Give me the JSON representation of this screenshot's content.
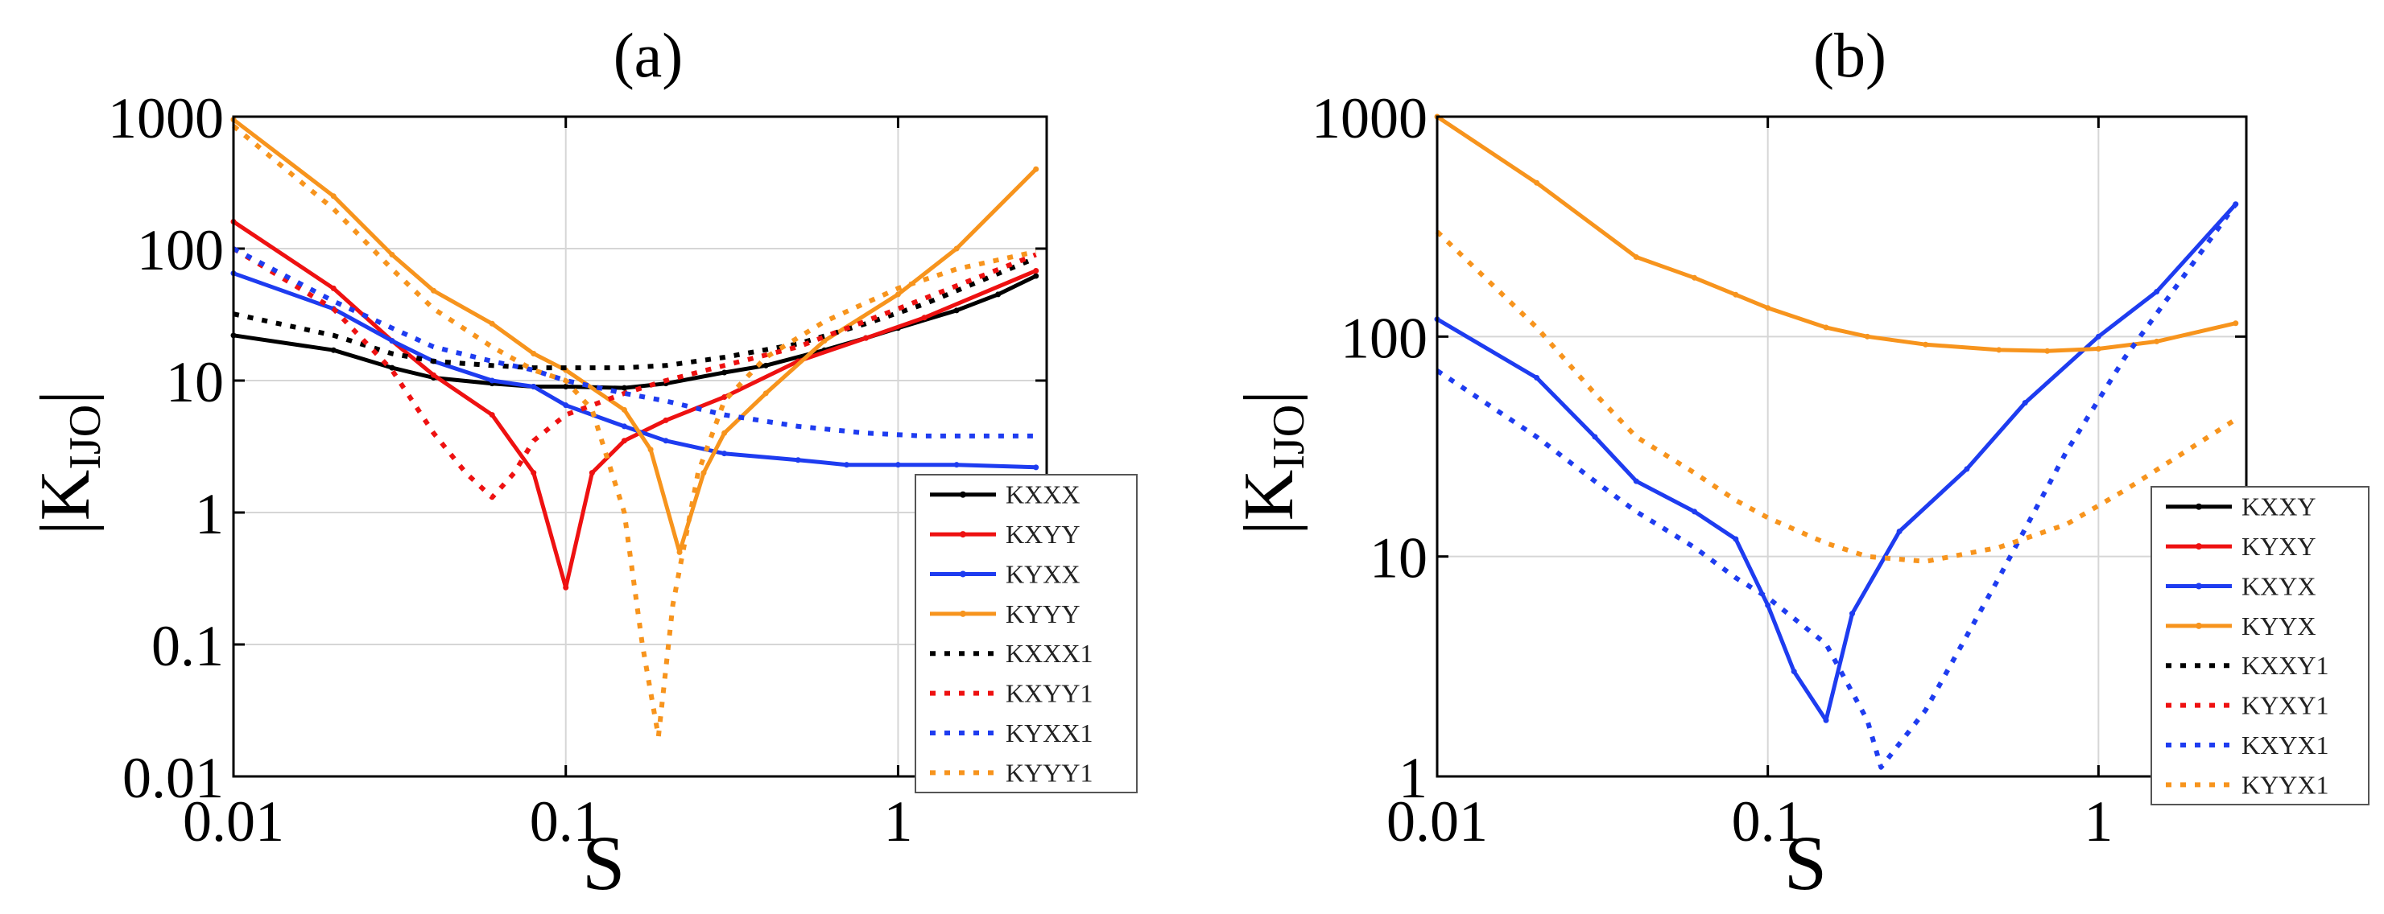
{
  "chart_data": [
    {
      "type": "line",
      "title": "(a)",
      "xlabel": "S",
      "ylabel": "|K",
      "ylabel_sub": "IJO",
      "ylabel_end": "|",
      "xscale": "log",
      "yscale": "log",
      "xlim": [
        0.01,
        2.8
      ],
      "ylim": [
        0.01,
        1000
      ],
      "xticks": [
        0.01,
        0.1,
        1
      ],
      "xtick_labels": [
        "0.01",
        "0.1",
        "1"
      ],
      "yticks": [
        0.01,
        0.1,
        1,
        10,
        100,
        1000
      ],
      "ytick_labels": [
        "0.01",
        "0.1",
        "1",
        "10",
        "100",
        "1000"
      ],
      "grid": true,
      "legend_position": "bottom-right",
      "series": [
        {
          "name": "KXXX",
          "color": "#000000",
          "style": "solid",
          "x": [
            0.01,
            0.02,
            0.03,
            0.04,
            0.06,
            0.08,
            0.1,
            0.15,
            0.2,
            0.3,
            0.4,
            0.6,
            0.8,
            1,
            1.5,
            2,
            2.6
          ],
          "y": [
            22,
            17,
            12.5,
            10.5,
            9.5,
            9,
            9,
            8.8,
            9.5,
            11.5,
            13,
            17,
            21,
            25,
            34,
            45,
            62
          ]
        },
        {
          "name": "KXYY",
          "color": "#ee1111",
          "style": "solid",
          "x": [
            0.01,
            0.02,
            0.03,
            0.04,
            0.06,
            0.08,
            0.1,
            0.12,
            0.15,
            0.2,
            0.3,
            0.5,
            0.8,
            1.2,
            2.6
          ],
          "y": [
            160,
            50,
            20,
            11,
            5.5,
            2,
            0.27,
            2,
            3.5,
            5,
            7.5,
            14,
            21,
            30,
            68
          ]
        },
        {
          "name": "KYXX",
          "color": "#1e3cf0",
          "style": "solid",
          "x": [
            0.01,
            0.02,
            0.03,
            0.04,
            0.06,
            0.08,
            0.1,
            0.15,
            0.2,
            0.3,
            0.5,
            0.7,
            1,
            1.5,
            2.6
          ],
          "y": [
            65,
            35,
            20,
            14,
            10,
            9,
            6.5,
            4.5,
            3.5,
            2.8,
            2.5,
            2.3,
            2.3,
            2.3,
            2.2
          ]
        },
        {
          "name": "KYYY",
          "color": "#f7941d",
          "style": "solid",
          "x": [
            0.01,
            0.02,
            0.03,
            0.04,
            0.06,
            0.08,
            0.1,
            0.15,
            0.18,
            0.22,
            0.26,
            0.3,
            0.4,
            0.6,
            1,
            1.5,
            2.6
          ],
          "y": [
            950,
            250,
            90,
            48,
            27,
            16,
            12,
            6,
            3,
            0.5,
            2,
            4,
            8,
            20,
            45,
            100,
            400
          ]
        },
        {
          "name": "KXXX1",
          "color": "#000000",
          "style": "dotted",
          "x": [
            0.01,
            0.02,
            0.03,
            0.04,
            0.06,
            0.08,
            0.1,
            0.15,
            0.2,
            0.3,
            0.5,
            0.8,
            1.2,
            2.6
          ],
          "y": [
            32,
            22,
            16,
            14,
            13,
            12.5,
            12.5,
            12.5,
            13,
            15,
            19,
            27,
            38,
            85
          ]
        },
        {
          "name": "KXYY1",
          "color": "#ee1111",
          "style": "dotted",
          "x": [
            0.01,
            0.02,
            0.03,
            0.04,
            0.05,
            0.06,
            0.07,
            0.08,
            0.1,
            0.12,
            0.15,
            0.2,
            0.3,
            0.5,
            1,
            2.6
          ],
          "y": [
            100,
            35,
            12,
            4,
            2,
            1.3,
            2,
            3.5,
            5.5,
            6.5,
            8,
            10,
            13,
            18,
            35,
            90
          ]
        },
        {
          "name": "KYXX1",
          "color": "#1e3cf0",
          "style": "dotted",
          "x": [
            0.01,
            0.02,
            0.03,
            0.04,
            0.06,
            0.08,
            0.1,
            0.15,
            0.2,
            0.3,
            0.5,
            0.8,
            1.2,
            2.6
          ],
          "y": [
            100,
            40,
            25,
            18,
            14,
            12,
            10,
            8,
            7,
            5.5,
            4.5,
            4,
            3.8,
            3.8
          ]
        },
        {
          "name": "KYYY1",
          "color": "#f7941d",
          "style": "dotted",
          "x": [
            0.01,
            0.02,
            0.03,
            0.04,
            0.06,
            0.08,
            0.1,
            0.12,
            0.15,
            0.17,
            0.19,
            0.21,
            0.25,
            0.3,
            0.4,
            0.6,
            1,
            1.5,
            2.6
          ],
          "y": [
            850,
            200,
            70,
            35,
            18,
            12,
            10,
            6,
            1,
            0.1,
            0.02,
            0.2,
            2,
            7,
            15,
            28,
            50,
            70,
            95
          ]
        }
      ]
    },
    {
      "type": "line",
      "title": "(b)",
      "xlabel": "S",
      "ylabel": "|K",
      "ylabel_sub": "IJO",
      "ylabel_end": "|",
      "xscale": "log",
      "yscale": "log",
      "xlim": [
        0.01,
        2.8
      ],
      "ylim": [
        1,
        1000
      ],
      "xticks": [
        0.01,
        0.1,
        1
      ],
      "xtick_labels": [
        "0.01",
        "0.1",
        "1"
      ],
      "yticks": [
        1,
        10,
        100,
        1000
      ],
      "ytick_labels": [
        "1",
        "10",
        "100",
        "1000"
      ],
      "grid": true,
      "legend_position": "bottom-right",
      "series": [
        {
          "name": "KXXY",
          "color": "#000000",
          "style": "solid",
          "x": [],
          "y": []
        },
        {
          "name": "KYXY",
          "color": "#ee1111",
          "style": "solid",
          "x": [],
          "y": []
        },
        {
          "name": "KXYX",
          "color": "#1e3cf0",
          "style": "solid",
          "x": [
            0.01,
            0.02,
            0.03,
            0.04,
            0.06,
            0.08,
            0.1,
            0.12,
            0.15,
            0.18,
            0.25,
            0.4,
            0.6,
            1,
            1.5,
            2.6
          ],
          "y": [
            120,
            65,
            35,
            22,
            16,
            12,
            6,
            3,
            1.8,
            5.5,
            13,
            25,
            50,
            100,
            160,
            400
          ]
        },
        {
          "name": "KYYX",
          "color": "#f7941d",
          "style": "solid",
          "x": [
            0.01,
            0.02,
            0.04,
            0.06,
            0.08,
            0.1,
            0.15,
            0.2,
            0.3,
            0.5,
            0.7,
            1,
            1.5,
            2.6
          ],
          "y": [
            1000,
            500,
            230,
            185,
            155,
            135,
            110,
            100,
            92,
            87,
            86,
            88,
            95,
            115
          ]
        },
        {
          "name": "KXXY1",
          "color": "#000000",
          "style": "dotted",
          "x": [],
          "y": []
        },
        {
          "name": "KYXY1",
          "color": "#ee1111",
          "style": "dotted",
          "x": [],
          "y": []
        },
        {
          "name": "KXYX1",
          "color": "#1e3cf0",
          "style": "dotted",
          "x": [
            0.01,
            0.02,
            0.03,
            0.04,
            0.06,
            0.08,
            0.1,
            0.15,
            0.2,
            0.22,
            0.3,
            0.5,
            0.8,
            1.2,
            2.6
          ],
          "y": [
            70,
            35,
            22,
            16,
            11,
            8,
            6.5,
            4,
            1.8,
            1.1,
            2,
            8,
            30,
            80,
            400
          ]
        },
        {
          "name": "KYYX1",
          "color": "#f7941d",
          "style": "dotted",
          "x": [
            0.01,
            0.02,
            0.03,
            0.04,
            0.06,
            0.08,
            0.1,
            0.15,
            0.2,
            0.3,
            0.5,
            0.8,
            1.2,
            2.6
          ],
          "y": [
            300,
            110,
            55,
            35,
            24,
            18,
            15,
            11.5,
            10,
            9.5,
            11,
            14,
            20,
            42
          ]
        }
      ]
    }
  ]
}
